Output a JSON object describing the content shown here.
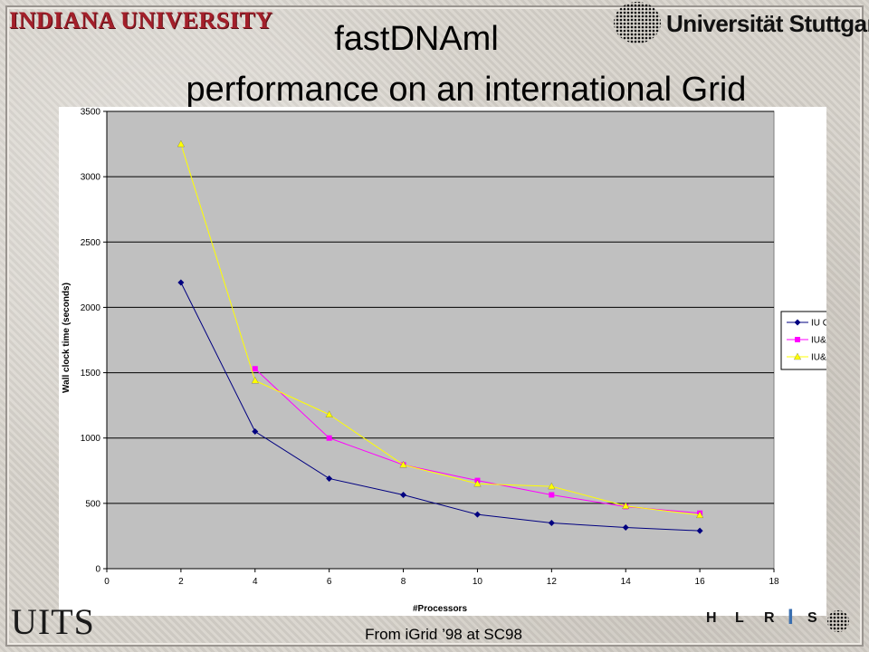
{
  "header": {
    "logo_left": "INDIANA UNIVERSITY",
    "logo_right": "Universität Stuttgart",
    "title_line1": "fastDNAml",
    "title_line2": "performance on an international Grid"
  },
  "footer": {
    "logo_left": "UITS",
    "source_note": "From iGrid ’98 at SC98",
    "logo_right_letters": [
      "H",
      "L",
      "R",
      "I",
      "S"
    ]
  },
  "chart_data": {
    "type": "line",
    "title": "",
    "xlabel": "#Processors",
    "ylabel": "Wall clock time (seconds)",
    "xlim": [
      0,
      18
    ],
    "ylim": [
      0,
      3500
    ],
    "xticks": [
      0,
      2,
      4,
      6,
      8,
      10,
      12,
      14,
      16,
      18
    ],
    "yticks": [
      0,
      500,
      1000,
      1500,
      2000,
      2500,
      3000,
      3500
    ],
    "grid": "horizontal",
    "legend_position": "right",
    "plot_background": "#c0c0c0",
    "series": [
      {
        "name": "IU Only",
        "color": "#000080",
        "marker": "diamond",
        "x": [
          2,
          4,
          6,
          8,
          10,
          12,
          14,
          16
        ],
        "y": [
          2190,
          1050,
          690,
          565,
          415,
          350,
          315,
          290
        ]
      },
      {
        "name": "IU&NUS",
        "color": "#ff00ff",
        "marker": "square",
        "x": [
          4,
          6,
          8,
          10,
          12,
          14,
          16
        ],
        "y": [
          1530,
          1000,
          795,
          675,
          565,
          475,
          425
        ]
      },
      {
        "name": "IU&ANU",
        "color": "#ffff00",
        "marker": "triangle",
        "x": [
          2,
          4,
          6,
          8,
          10,
          12,
          14,
          16
        ],
        "y": [
          3250,
          1440,
          1180,
          795,
          650,
          630,
          480,
          410
        ]
      }
    ]
  }
}
